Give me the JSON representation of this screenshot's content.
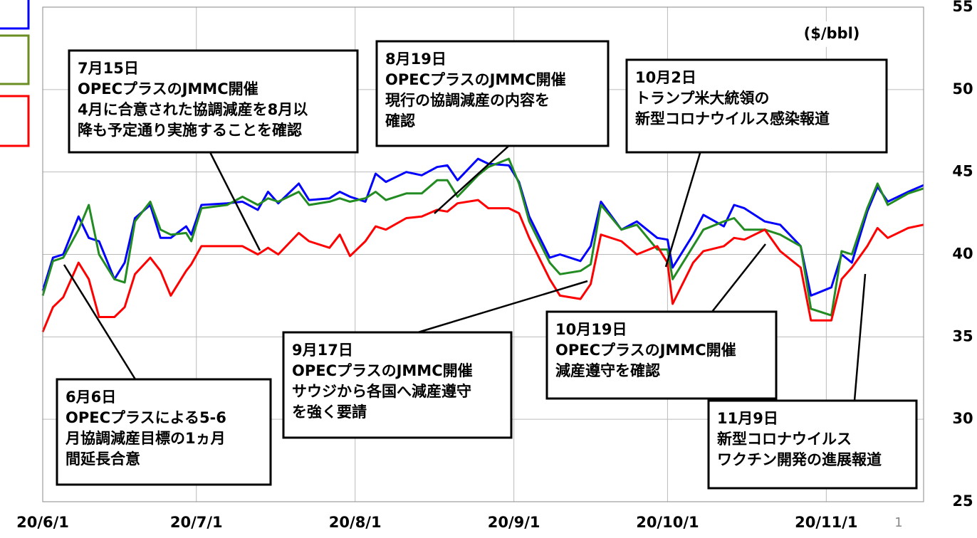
{
  "chart_data": {
    "type": "line",
    "unit_label": "($/bbl)",
    "x": [
      "20/6/1",
      "20/6/3",
      "20/6/5",
      "20/6/8",
      "20/6/10",
      "20/6/12",
      "20/6/15",
      "20/6/17",
      "20/6/19",
      "20/6/22",
      "20/6/24",
      "20/6/26",
      "20/6/29",
      "20/6/30",
      "20/7/2",
      "20/7/7",
      "20/7/10",
      "20/7/13",
      "20/7/15",
      "20/7/17",
      "20/7/21",
      "20/7/23",
      "20/7/27",
      "20/7/29",
      "20/7/31",
      "20/8/3",
      "20/8/5",
      "20/8/7",
      "20/8/11",
      "20/8/14",
      "20/8/17",
      "20/8/19",
      "20/8/21",
      "20/8/25",
      "20/8/27",
      "20/8/31",
      "20/9/2",
      "20/9/4",
      "20/9/8",
      "20/9/10",
      "20/9/14",
      "20/9/16",
      "20/9/18",
      "20/9/22",
      "20/9/25",
      "20/9/29",
      "20/10/1",
      "20/10/2",
      "20/10/6",
      "20/10/8",
      "20/10/12",
      "20/10/14",
      "20/10/16",
      "20/10/20",
      "20/10/23",
      "20/10/27",
      "20/10/29",
      "20/11/2",
      "20/11/4",
      "20/11/6",
      "20/11/9",
      "20/11/11",
      "20/11/13",
      "20/11/17",
      "20/11/20"
    ],
    "series": [
      {
        "color": "#0000ff",
        "values": [
          37.8,
          39.8,
          40.0,
          42.3,
          41.0,
          40.8,
          38.5,
          39.5,
          42.2,
          43.0,
          41.0,
          41.0,
          41.7,
          41.2,
          43.0,
          43.1,
          43.2,
          42.7,
          43.8,
          43.1,
          44.3,
          43.3,
          43.4,
          43.8,
          43.5,
          43.2,
          44.9,
          44.4,
          45.0,
          44.8,
          45.3,
          45.4,
          44.5,
          45.8,
          45.5,
          45.4,
          44.4,
          42.3,
          39.8,
          40.0,
          39.6,
          40.5,
          43.2,
          41.5,
          42.0,
          41.0,
          40.9,
          39.2,
          41.2,
          42.4,
          41.7,
          43.0,
          42.8,
          42.0,
          41.8,
          40.5,
          37.5,
          38.0,
          40.0,
          39.5,
          42.6,
          44.1,
          43.2,
          43.8,
          44.2
        ]
      },
      {
        "color": "#228b22",
        "values": [
          37.5,
          39.6,
          39.8,
          41.5,
          43.0,
          40.0,
          38.5,
          38.3,
          42.0,
          43.2,
          41.5,
          41.2,
          41.3,
          40.8,
          42.8,
          43.0,
          43.5,
          43.0,
          43.4,
          43.2,
          43.8,
          43.0,
          43.2,
          43.4,
          43.2,
          43.4,
          43.8,
          43.3,
          43.7,
          43.7,
          44.5,
          44.5,
          43.5,
          44.8,
          45.3,
          45.8,
          44.3,
          42.0,
          39.5,
          38.8,
          39.0,
          39.4,
          43.0,
          41.5,
          41.8,
          40.3,
          40.3,
          38.5,
          40.5,
          41.5,
          42.0,
          42.2,
          41.5,
          41.5,
          41.2,
          40.5,
          36.7,
          36.3,
          40.2,
          40.0,
          42.8,
          44.3,
          43.0,
          43.7,
          44.0
        ]
      },
      {
        "color": "#ff0000",
        "values": [
          35.3,
          36.8,
          37.4,
          39.5,
          38.5,
          36.2,
          36.2,
          36.8,
          38.8,
          39.8,
          39.0,
          37.5,
          39.0,
          39.4,
          40.5,
          40.5,
          40.5,
          40.0,
          40.4,
          40.0,
          41.3,
          40.8,
          40.4,
          41.2,
          39.9,
          40.8,
          41.7,
          41.5,
          42.2,
          42.3,
          42.7,
          42.6,
          43.1,
          43.3,
          42.8,
          42.8,
          42.5,
          41.0,
          38.5,
          37.5,
          37.3,
          38.2,
          41.2,
          40.8,
          40.0,
          40.5,
          39.5,
          37.0,
          39.5,
          40.2,
          40.5,
          41.0,
          40.9,
          41.5,
          40.2,
          39.2,
          36.0,
          36.0,
          38.5,
          39.2,
          40.5,
          41.6,
          41.0,
          41.6,
          41.8
        ]
      }
    ],
    "xlim": [
      "20/6/1",
      "20/11/20"
    ],
    "xticks": [
      "20/6/1",
      "20/7/1",
      "20/8/1",
      "20/9/1",
      "20/10/1",
      "20/11/1"
    ],
    "ylim": [
      25,
      55
    ],
    "yticks": [
      25,
      30,
      35,
      40,
      45,
      50,
      55
    ],
    "grid": true,
    "annotations": [
      {
        "lines": [
          "6月6日",
          "OPECプラスによる5-6",
          "月協調減産目標の1ヵ月",
          "間延長合意"
        ]
      },
      {
        "lines": [
          "7月15日",
          "OPECプラスのJMMC開催",
          "4月に合意された協調減産を8月以",
          "降も予定通り実施することを確認"
        ]
      },
      {
        "lines": [
          "8月19日",
          "OPECプラスのJMMC開催",
          "現行の協調減産の内容を",
          "確認"
        ]
      },
      {
        "lines": [
          "10月2日",
          "トランプ米大統領の",
          "新型コロナウイルス感染報道"
        ]
      },
      {
        "lines": [
          "9月17日",
          "OPECプラスのJMMC開催",
          "サウジから各国へ減産遵守",
          "を強く要請"
        ]
      },
      {
        "lines": [
          "10月19日",
          "OPECプラスのJMMC開催",
          "減産遵守を確認"
        ]
      },
      {
        "lines": [
          "11月9日",
          "新型コロナウイルス",
          "ワクチン開発の進展報道"
        ]
      }
    ]
  },
  "page_number": "1"
}
